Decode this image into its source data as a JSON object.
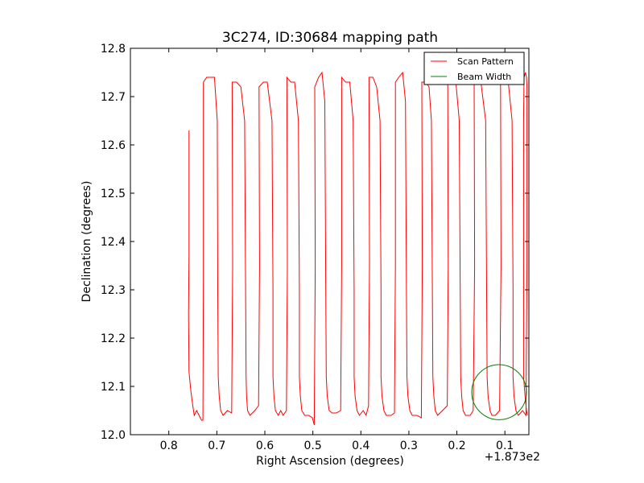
{
  "chart_data": {
    "type": "line",
    "title": "3C274, ID:30684 mapping path",
    "xlabel": "Right Ascension (degrees)",
    "ylabel": "Declination (degrees)",
    "x_offset_label": "+1.873e2",
    "x_tick_labels": [
      "0.8",
      "0.7",
      "0.6",
      "0.5",
      "0.4",
      "0.3",
      "0.2",
      "0.1"
    ],
    "x_ticks": [
      0.8,
      0.7,
      0.6,
      0.5,
      0.4,
      0.3,
      0.2,
      0.1
    ],
    "y_tick_labels": [
      "12.0",
      "12.1",
      "12.2",
      "12.3",
      "12.4",
      "12.5",
      "12.6",
      "12.7",
      "12.8"
    ],
    "y_ticks": [
      12.0,
      12.1,
      12.2,
      12.3,
      12.4,
      12.5,
      12.6,
      12.7,
      12.8
    ],
    "xlim": [
      0.88,
      0.05
    ],
    "ylim": [
      12.0,
      12.8
    ],
    "grid": false,
    "legend_position": "top-right",
    "series": [
      {
        "name": "Scan Pattern",
        "color": "#ff0000",
        "points": [
          [
            0.758,
            12.63
          ],
          [
            0.758,
            12.37
          ],
          [
            0.759,
            12.25
          ],
          [
            0.758,
            12.13
          ],
          [
            0.754,
            12.09
          ],
          [
            0.75,
            12.06
          ],
          [
            0.747,
            12.04
          ],
          [
            0.742,
            12.05
          ],
          [
            0.737,
            12.04
          ],
          [
            0.732,
            12.03
          ],
          [
            0.729,
            12.03
          ],
          [
            0.728,
            12.33
          ],
          [
            0.728,
            12.73
          ],
          [
            0.721,
            12.74
          ],
          [
            0.711,
            12.74
          ],
          [
            0.705,
            12.74
          ],
          [
            0.699,
            12.65
          ],
          [
            0.698,
            12.3
          ],
          [
            0.697,
            12.12
          ],
          [
            0.695,
            12.08
          ],
          [
            0.692,
            12.05
          ],
          [
            0.687,
            12.04
          ],
          [
            0.678,
            12.05
          ],
          [
            0.669,
            12.045
          ],
          [
            0.667,
            12.35
          ],
          [
            0.668,
            12.73
          ],
          [
            0.659,
            12.73
          ],
          [
            0.65,
            12.72
          ],
          [
            0.642,
            12.65
          ],
          [
            0.64,
            12.3
          ],
          [
            0.639,
            12.12
          ],
          [
            0.638,
            12.08
          ],
          [
            0.636,
            12.05
          ],
          [
            0.631,
            12.04
          ],
          [
            0.621,
            12.05
          ],
          [
            0.613,
            12.06
          ],
          [
            0.611,
            12.35
          ],
          [
            0.612,
            12.72
          ],
          [
            0.603,
            12.73
          ],
          [
            0.595,
            12.73
          ],
          [
            0.585,
            12.65
          ],
          [
            0.583,
            12.3
          ],
          [
            0.583,
            12.12
          ],
          [
            0.581,
            12.08
          ],
          [
            0.578,
            12.05
          ],
          [
            0.572,
            12.04
          ],
          [
            0.567,
            12.05
          ],
          [
            0.562,
            12.04
          ],
          [
            0.555,
            12.05
          ],
          [
            0.553,
            12.35
          ],
          [
            0.554,
            12.74
          ],
          [
            0.546,
            12.73
          ],
          [
            0.538,
            12.73
          ],
          [
            0.53,
            12.65
          ],
          [
            0.528,
            12.3
          ],
          [
            0.528,
            12.12
          ],
          [
            0.526,
            12.08
          ],
          [
            0.523,
            12.05
          ],
          [
            0.517,
            12.04
          ],
          [
            0.509,
            12.04
          ],
          [
            0.501,
            12.035
          ],
          [
            0.497,
            12.02
          ],
          [
            0.495,
            12.35
          ],
          [
            0.496,
            12.72
          ],
          [
            0.488,
            12.74
          ],
          [
            0.481,
            12.75
          ],
          [
            0.475,
            12.69
          ],
          [
            0.473,
            12.3
          ],
          [
            0.472,
            12.12
          ],
          [
            0.47,
            12.08
          ],
          [
            0.466,
            12.05
          ],
          [
            0.46,
            12.045
          ],
          [
            0.451,
            12.045
          ],
          [
            0.442,
            12.05
          ],
          [
            0.44,
            12.35
          ],
          [
            0.44,
            12.74
          ],
          [
            0.432,
            12.73
          ],
          [
            0.423,
            12.73
          ],
          [
            0.416,
            12.65
          ],
          [
            0.414,
            12.3
          ],
          [
            0.414,
            12.12
          ],
          [
            0.412,
            12.08
          ],
          [
            0.408,
            12.05
          ],
          [
            0.403,
            12.04
          ],
          [
            0.395,
            12.05
          ],
          [
            0.389,
            12.04
          ],
          [
            0.384,
            12.06
          ],
          [
            0.382,
            12.35
          ],
          [
            0.383,
            12.74
          ],
          [
            0.375,
            12.74
          ],
          [
            0.367,
            12.72
          ],
          [
            0.36,
            12.65
          ],
          [
            0.358,
            12.3
          ],
          [
            0.358,
            12.12
          ],
          [
            0.356,
            12.08
          ],
          [
            0.352,
            12.05
          ],
          [
            0.347,
            12.04
          ],
          [
            0.337,
            12.04
          ],
          [
            0.33,
            12.045
          ],
          [
            0.328,
            12.35
          ],
          [
            0.328,
            12.73
          ],
          [
            0.321,
            12.74
          ],
          [
            0.313,
            12.75
          ],
          [
            0.307,
            12.69
          ],
          [
            0.305,
            12.3
          ],
          [
            0.304,
            12.12
          ],
          [
            0.302,
            12.08
          ],
          [
            0.298,
            12.05
          ],
          [
            0.293,
            12.04
          ],
          [
            0.283,
            12.04
          ],
          [
            0.274,
            12.035
          ],
          [
            0.272,
            12.35
          ],
          [
            0.273,
            12.73
          ],
          [
            0.265,
            12.73
          ],
          [
            0.258,
            12.72
          ],
          [
            0.253,
            12.65
          ],
          [
            0.251,
            12.3
          ],
          [
            0.25,
            12.12
          ],
          [
            0.248,
            12.08
          ],
          [
            0.245,
            12.05
          ],
          [
            0.24,
            12.04
          ],
          [
            0.23,
            12.05
          ],
          [
            0.22,
            12.06
          ],
          [
            0.218,
            12.35
          ],
          [
            0.219,
            12.73
          ],
          [
            0.212,
            12.73
          ],
          [
            0.202,
            12.73
          ],
          [
            0.195,
            12.65
          ],
          [
            0.193,
            12.3
          ],
          [
            0.192,
            12.12
          ],
          [
            0.19,
            12.08
          ],
          [
            0.187,
            12.05
          ],
          [
            0.182,
            12.04
          ],
          [
            0.172,
            12.04
          ],
          [
            0.166,
            12.05
          ],
          [
            0.163,
            12.35
          ],
          [
            0.164,
            12.73
          ],
          [
            0.158,
            12.73
          ],
          [
            0.15,
            12.73
          ],
          [
            0.14,
            12.65
          ],
          [
            0.138,
            12.3
          ],
          [
            0.137,
            12.12
          ],
          [
            0.135,
            12.08
          ],
          [
            0.131,
            12.05
          ],
          [
            0.127,
            12.04
          ],
          [
            0.12,
            12.04
          ],
          [
            0.111,
            12.05
          ],
          [
            0.108,
            12.35
          ],
          [
            0.109,
            12.73
          ],
          [
            0.101,
            12.73
          ],
          [
            0.093,
            12.73
          ],
          [
            0.085,
            12.65
          ],
          [
            0.083,
            12.3
          ],
          [
            0.083,
            12.12
          ],
          [
            0.081,
            12.08
          ],
          [
            0.077,
            12.05
          ],
          [
            0.072,
            12.04
          ],
          [
            0.063,
            12.05
          ],
          [
            0.056,
            12.04
          ],
          [
            0.054,
            12.35
          ],
          [
            0.054,
            12.72
          ],
          [
            0.055,
            12.74
          ],
          [
            0.057,
            12.75
          ],
          [
            0.06,
            12.74
          ],
          [
            0.061,
            12.65
          ],
          [
            0.061,
            12.3
          ],
          [
            0.061,
            12.12
          ],
          [
            0.058,
            12.08
          ],
          [
            0.055,
            12.05
          ],
          [
            0.053,
            12.04
          ]
        ]
      },
      {
        "name": "Beam Width",
        "color": "#008000",
        "circle_center": [
          0.112,
          12.088
        ],
        "circle_radius": 0.057
      }
    ]
  }
}
